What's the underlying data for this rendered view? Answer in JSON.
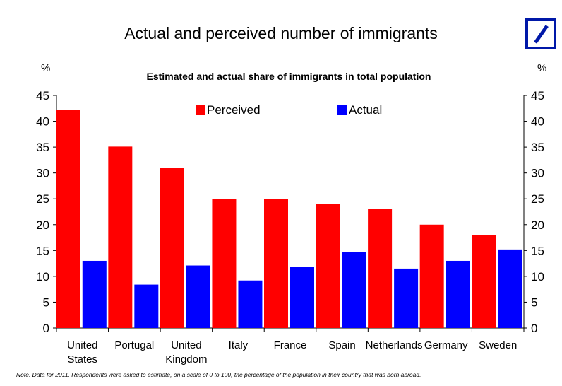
{
  "title": "Actual and perceived number of immigrants",
  "subtitle": "Estimated and actual share of immigrants in total population",
  "y_unit_left": "%",
  "y_unit_right": "%",
  "note": "Note: Data for 2011. Respondents were asked to estimate, on a scale of 0 to 100, the percentage of the population in their country that was born abroad.",
  "logo_icon": "deutsche-bank-slash-logo",
  "chart_data": {
    "type": "bar",
    "title": "Estimated and actual share of immigrants in total population",
    "xlabel": "",
    "ylabel": "%",
    "ylim": [
      0,
      45
    ],
    "yticks": [
      0,
      5,
      10,
      15,
      20,
      25,
      30,
      35,
      40,
      45
    ],
    "secondary_axis": true,
    "legend_position": "top-center",
    "categories": [
      [
        "United",
        "States"
      ],
      [
        "Portugal"
      ],
      [
        "United",
        "Kingdom"
      ],
      [
        "Italy"
      ],
      [
        "France"
      ],
      [
        "Spain"
      ],
      [
        "Netherlands"
      ],
      [
        "Germany"
      ],
      [
        "Sweden"
      ]
    ],
    "series": [
      {
        "name": "Perceived",
        "color": "#ff0000",
        "values": [
          42.2,
          35.1,
          31.0,
          25.0,
          25.0,
          24.0,
          23.0,
          20.0,
          18.0
        ]
      },
      {
        "name": "Actual",
        "color": "#0000ff",
        "values": [
          13.0,
          8.4,
          12.1,
          9.2,
          11.8,
          14.7,
          11.5,
          13.0,
          15.2
        ]
      }
    ]
  }
}
